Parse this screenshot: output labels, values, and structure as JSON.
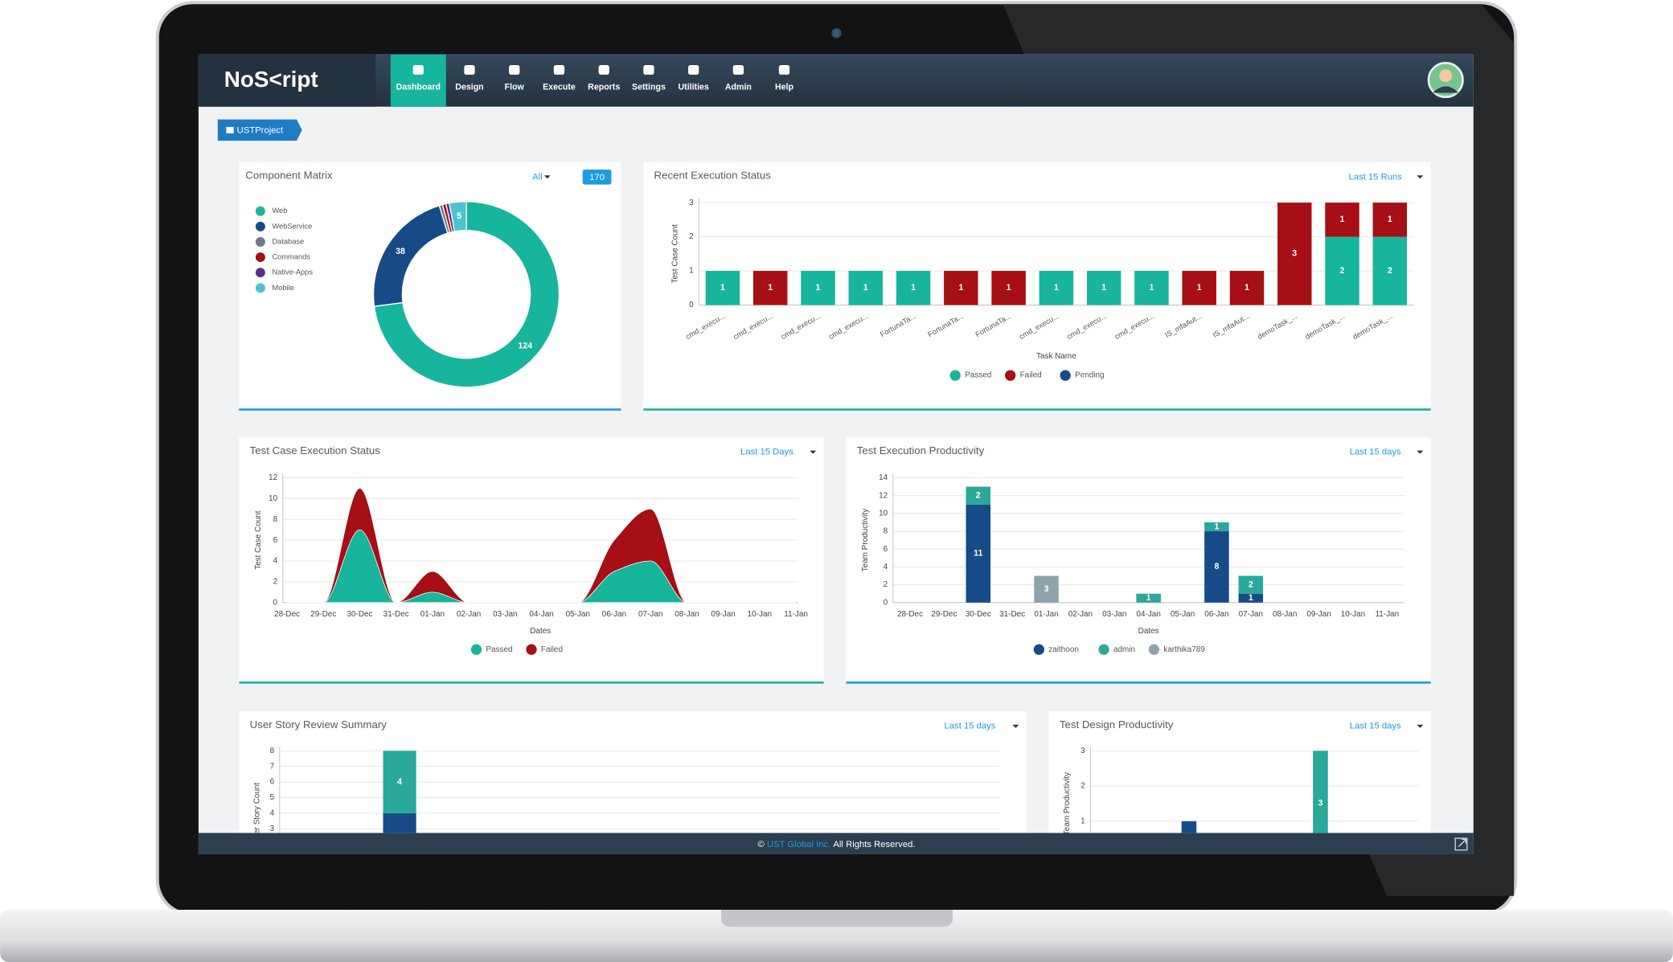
{
  "nav": {
    "logo": "NoS<ript",
    "items": [
      "Dashboard",
      "Design",
      "Flow",
      "Execute",
      "Reports",
      "Settings",
      "Utilities",
      "Admin",
      "Help"
    ],
    "active": 0
  },
  "project": "USTProject",
  "footer": {
    "symbol": "©",
    "company": "UST Global Inc.",
    "rights": "All Rights Reserved."
  },
  "chart_data": [
    {
      "type": "donut",
      "title": "Component Matrix",
      "filter": "All",
      "total": 170,
      "categories": [
        "Web",
        "WebService",
        "Database",
        "Commands",
        "Native-Apps",
        "Mobile"
      ],
      "values": [
        124,
        38,
        1,
        1,
        1,
        5
      ],
      "colors": [
        "#17b59b",
        "#174b87",
        "#6c7a89",
        "#a50f15",
        "#5a2d8a",
        "#4cc3d0"
      ]
    },
    {
      "type": "stacked-bar",
      "title": "Recent Execution Status",
      "filter": "Last 15 Runs",
      "xlabel": "Task Name",
      "ylabel": "Test Case Count",
      "categories": [
        "cmd_execu...",
        "cmd_execu...",
        "cmd_execu...",
        "cmd_execu...",
        "FortunaTa...",
        "FortunaTa...",
        "FortunaTa...",
        "cmd_execu...",
        "cmd_execu...",
        "cmd_execu...",
        "IS_mfaAut...",
        "IS_mfaAut...",
        "demoTask_...",
        "demoTask_...",
        "demoTask_..."
      ],
      "series": [
        {
          "name": "Passed",
          "color": "#17b59b",
          "values": [
            1,
            0,
            1,
            1,
            1,
            0,
            0,
            1,
            1,
            1,
            0,
            0,
            0,
            2,
            2
          ]
        },
        {
          "name": "Failed",
          "color": "#a50f15",
          "values": [
            0,
            1,
            0,
            0,
            0,
            1,
            1,
            0,
            0,
            0,
            1,
            1,
            3,
            1,
            1
          ]
        },
        {
          "name": "Pending",
          "color": "#174b87",
          "values": [
            0,
            0,
            0,
            0,
            0,
            0,
            0,
            0,
            0,
            0,
            0,
            0,
            0,
            0,
            0
          ]
        }
      ],
      "ylim": [
        0,
        3
      ],
      "yticks": [
        0,
        1,
        2,
        3
      ],
      "grid": true
    },
    {
      "type": "stacked-area",
      "title": "Test Case Execution Status",
      "filter": "Last 15 Days",
      "xlabel": "Dates",
      "ylabel": "Test Case Count",
      "categories": [
        "28-Dec",
        "29-Dec",
        "30-Dec",
        "31-Dec",
        "01-Jan",
        "02-Jan",
        "03-Jan",
        "04-Jan",
        "05-Jan",
        "06-Jan",
        "07-Jan",
        "08-Jan",
        "09-Jan",
        "10-Jan",
        "11-Jan"
      ],
      "series": [
        {
          "name": "Passed",
          "color": "#17b59b",
          "values": [
            0,
            0,
            7,
            0,
            1,
            0,
            0,
            0,
            0,
            3,
            4,
            0,
            0,
            0,
            0
          ]
        },
        {
          "name": "Failed",
          "color": "#a50f15",
          "values": [
            0,
            0,
            4,
            0,
            2,
            0,
            0,
            0,
            0,
            3,
            5,
            0,
            0,
            0,
            0
          ]
        }
      ],
      "ylim": [
        0,
        12
      ],
      "yticks": [
        0,
        2,
        4,
        6,
        8,
        10,
        12
      ],
      "grid": true
    },
    {
      "type": "stacked-bar",
      "title": "Test Execution Productivity",
      "filter": "Last 15 days",
      "xlabel": "Dates",
      "ylabel": "Team Productivity",
      "categories": [
        "28-Dec",
        "29-Dec",
        "30-Dec",
        "31-Dec",
        "01-Jan",
        "02-Jan",
        "03-Jan",
        "04-Jan",
        "05-Jan",
        "06-Jan",
        "07-Jan",
        "08-Jan",
        "09-Jan",
        "10-Jan",
        "11-Jan"
      ],
      "series": [
        {
          "name": "zaithoon",
          "color": "#174b87",
          "values": [
            0,
            0,
            11,
            0,
            0,
            0,
            0,
            0,
            0,
            8,
            1,
            0,
            0,
            0,
            0
          ]
        },
        {
          "name": "admin",
          "color": "#2aa89a",
          "values": [
            0,
            0,
            2,
            0,
            0,
            0,
            0,
            1,
            0,
            1,
            2,
            0,
            0,
            0,
            0
          ]
        },
        {
          "name": "karthika789",
          "color": "#8fa3ad",
          "values": [
            0,
            0,
            0,
            0,
            3,
            0,
            0,
            0,
            0,
            0,
            0,
            0,
            0,
            0,
            0
          ]
        }
      ],
      "ylim": [
        0,
        14
      ],
      "yticks": [
        0,
        2,
        4,
        6,
        8,
        10,
        12,
        14
      ],
      "grid": true
    },
    {
      "type": "stacked-bar",
      "title": "User Story Review Summary",
      "filter": "Last 15 days",
      "ylabel": "User Story Count",
      "categories": [
        null,
        null,
        null,
        null,
        null,
        null,
        null,
        null,
        null,
        null,
        null,
        null,
        null,
        null,
        null
      ],
      "series": [
        {
          "color": "#174b87",
          "values": [
            0,
            0,
            4,
            0,
            0,
            0,
            0,
            0,
            0,
            0,
            0,
            0,
            0,
            0,
            0
          ]
        },
        {
          "color": "#2aa89a",
          "values": [
            0,
            0,
            4,
            0,
            0,
            0,
            0,
            0,
            0,
            0,
            0,
            0,
            0,
            0,
            0
          ]
        }
      ],
      "ylim": [
        0,
        8
      ],
      "yticks": [
        3,
        4,
        5,
        6,
        7,
        8
      ],
      "grid": true
    },
    {
      "type": "stacked-bar",
      "title": "Test Design Productivity",
      "filter": "Last 15 days",
      "ylabel": "Team Productivity",
      "categories": [
        null,
        null,
        null,
        null,
        null,
        null,
        null,
        null,
        null,
        null,
        null,
        null,
        null,
        null,
        null
      ],
      "series": [
        {
          "color": "#174b87",
          "values": [
            0,
            0,
            0,
            0,
            1,
            0,
            0,
            0,
            0,
            0,
            0,
            0,
            0,
            0,
            0
          ]
        },
        {
          "color": "#2aa89a",
          "values": [
            0,
            0,
            0,
            0,
            0,
            0,
            0,
            0,
            0,
            0,
            3,
            0,
            0,
            0,
            0
          ]
        }
      ],
      "ylim": [
        0,
        3
      ],
      "yticks": [
        1,
        2,
        3
      ],
      "grid": true
    }
  ]
}
